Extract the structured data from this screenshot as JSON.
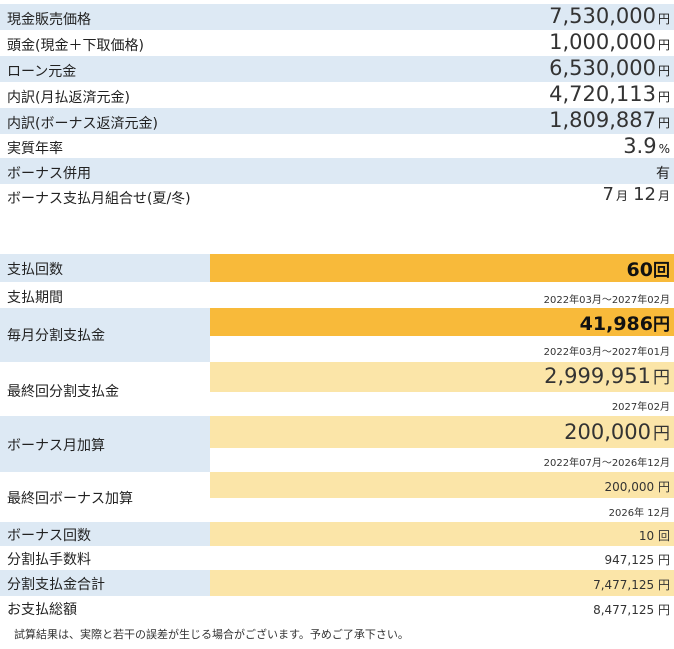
{
  "summary": [
    {
      "label": "現金販売価格",
      "value": "7,530,000",
      "unit": "円"
    },
    {
      "label": "頭金(現金＋下取価格)",
      "value": "1,000,000",
      "unit": "円"
    },
    {
      "label": "ローン元金",
      "value": "6,530,000",
      "unit": "円"
    },
    {
      "label": "内訳(月払返済元金)",
      "value": "4,720,113",
      "unit": "円"
    },
    {
      "label": "内訳(ボーナス返済元金)",
      "value": "1,809,887",
      "unit": "円"
    },
    {
      "label": "実質年率",
      "value": "3.9",
      "unit": "%"
    },
    {
      "label": "ボーナス併用",
      "value": "有",
      "unit": ""
    },
    {
      "label": "ボーナス支払月組合せ(夏/冬)",
      "value_a": "7",
      "unit_a": "月",
      "value_b": "12",
      "unit_b": "月"
    }
  ],
  "payment": {
    "count": {
      "label": "支払回数",
      "value": "60",
      "unit": "回"
    },
    "period": {
      "label": "支払期間",
      "range": "2022年03月～2027年02月"
    },
    "monthly": {
      "label": "毎月分割支払金",
      "value": "41,986",
      "unit": "円",
      "range": "2022年03月～2027年01月"
    },
    "final_monthly": {
      "label": "最終回分割支払金",
      "value": "2,999,951",
      "unit": "円",
      "date": "2027年02月"
    },
    "bonus_add": {
      "label": "ボーナス月加算",
      "value": "200,000",
      "unit": "円",
      "range": "2022年07月～2026年12月"
    },
    "final_bonus": {
      "label": "最終回ボーナス加算",
      "value": "200,000",
      "unit": "円",
      "date": "2026年 12月"
    },
    "bonus_count": {
      "label": "ボーナス回数",
      "value": "10",
      "unit": "回"
    },
    "fee": {
      "label": "分割払手数料",
      "value": "947,125",
      "unit": "円"
    },
    "installment_total": {
      "label": "分割支払金合計",
      "value": "7,477,125",
      "unit": "円"
    },
    "grand_total": {
      "label": "お支払総額",
      "value": "8,477,125",
      "unit": "円"
    }
  },
  "disclaimer": "試算結果は、実際と若干の誤差が生じる場合がございます。予めご了承下さい。"
}
